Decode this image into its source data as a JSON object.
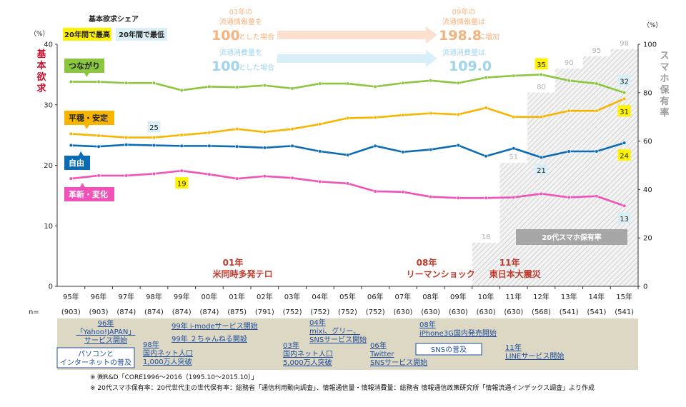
{
  "colors": {
    "tsunagari": "#8cc63f",
    "heion": "#f7b500",
    "jiyu": "#0b6cb5",
    "kakushin": "#f052b8",
    "max_box": "#fff200",
    "min_box": "#daeef5",
    "title_red": "#c8102e",
    "event_red": "#c0392b",
    "smartphone_gray": "#a6a6a6",
    "orange_text": "#f5b27e",
    "blue_text": "#9fd4ec",
    "timeline_bg": "#ddd8c4",
    "link_blue": "#1f4e9e"
  },
  "header": {
    "legend_title": "基本欲求シェア",
    "legend_max": "20年間で最高",
    "legend_min": "20年間で最低",
    "left_unit": "（%）",
    "right_unit": "（%）",
    "left_axis_title": "基本欲求",
    "right_axis_title": "スマホ保有率",
    "info_row1_left": "01年の",
    "info_row1_left_b": "流通情報量を",
    "info_row1_val": "100",
    "info_row1_suffix": "とした場合",
    "info_row1_right": "09年の",
    "info_row1_right_b": "流通情報量は",
    "info_row1_right_val": "198.8",
    "info_row1_right_suffix": "に増加",
    "info_row2_left_b": "流通消費量を",
    "info_row2_val": "100",
    "info_row2_suffix": "とした場合",
    "info_row2_right_b": "流通消費量は",
    "info_row2_right_val": "109.0"
  },
  "chart_data": {
    "type": "line",
    "categories": [
      "95年",
      "96年",
      "97年",
      "98年",
      "99年",
      "00年",
      "01年",
      "02年",
      "03年",
      "04年",
      "05年",
      "06年",
      "07年",
      "08年",
      "09年",
      "10年",
      "11年",
      "12年",
      "13年",
      "14年",
      "15年"
    ],
    "n_labels": [
      "(903)",
      "(903)",
      "(874)",
      "(874)",
      "(874)",
      "(874)",
      "(875)",
      "(791)",
      "(752)",
      "(752)",
      "(752)",
      "(752)",
      "(630)",
      "(630)",
      "(630)",
      "(630)",
      "(630)",
      "(568)",
      "(541)",
      "(541)",
      "(541)"
    ],
    "n_prefix": "n=",
    "y_left": {
      "min": 0,
      "max": 40,
      "ticks": [
        "0",
        "10",
        "20",
        "30",
        "40"
      ]
    },
    "y_right": {
      "min": 0,
      "max": 100,
      "ticks": [
        "0",
        "20",
        "40",
        "60",
        "80",
        "100"
      ]
    },
    "series": [
      {
        "name": "つながり",
        "key": "tsunagari",
        "values": [
          33.8,
          33.8,
          33.6,
          33.6,
          32.4,
          33.0,
          32.9,
          33.2,
          32.7,
          33.5,
          33.5,
          33.0,
          33.6,
          34.0,
          33.6,
          34.5,
          34.8,
          35.0,
          34.0,
          33.5,
          32.0
        ]
      },
      {
        "name": "平穏・安定",
        "key": "heion",
        "values": [
          25.2,
          24.9,
          24.6,
          24.6,
          25.0,
          25.4,
          26.0,
          25.5,
          26.0,
          26.8,
          27.8,
          27.9,
          28.3,
          28.6,
          28.4,
          29.5,
          28.0,
          28.0,
          29.0,
          29.0,
          31.0
        ]
      },
      {
        "name": "自由",
        "key": "jiyu",
        "values": [
          23.3,
          23.1,
          23.4,
          23.3,
          23.2,
          23.2,
          23.1,
          22.9,
          23.2,
          22.3,
          21.7,
          23.2,
          22.2,
          22.6,
          23.3,
          21.5,
          22.8,
          21.3,
          22.3,
          22.3,
          23.7
        ]
      },
      {
        "name": "革新・変化",
        "key": "kakushin",
        "values": [
          17.8,
          18.3,
          18.3,
          18.6,
          19.1,
          18.5,
          17.8,
          18.2,
          17.9,
          17.3,
          17.0,
          15.7,
          15.6,
          14.8,
          14.6,
          14.6,
          14.7,
          15.3,
          14.7,
          14.9,
          13.3
        ]
      }
    ],
    "data_labels": [
      {
        "series": "tsunagari",
        "index": 17,
        "text": "35",
        "style": "max"
      },
      {
        "series": "tsunagari",
        "index": 20,
        "text": "32",
        "style": "min"
      },
      {
        "series": "heion",
        "index": 3,
        "text": "25",
        "style": "min"
      },
      {
        "series": "heion",
        "index": 20,
        "text": "31",
        "style": "max"
      },
      {
        "series": "jiyu",
        "index": 17,
        "text": "21",
        "style": "min"
      },
      {
        "series": "jiyu",
        "index": 20,
        "text": "24",
        "style": "max"
      },
      {
        "series": "kakushin",
        "index": 4,
        "text": "19",
        "style": "max"
      },
      {
        "series": "kakushin",
        "index": 20,
        "text": "13",
        "style": "min"
      }
    ],
    "smartphone_share": {
      "label": "20代スマホ保有率",
      "start_index": 15,
      "values": [
        18,
        51,
        80,
        90,
        95,
        98
      ],
      "labels": [
        "18",
        "51",
        "80",
        "90",
        "95",
        "98"
      ]
    },
    "events": [
      {
        "index": 6,
        "line1": "01年",
        "line2": "米同時多発テロ"
      },
      {
        "index": 13,
        "line1": "08年",
        "line2": "リーマンショック"
      },
      {
        "index": 16,
        "line1": "11年",
        "line2": "東日本大震災"
      }
    ]
  },
  "timeline": {
    "items": [
      {
        "lines": [
          "96年",
          "「Yahoo!JAPAN」",
          "サービス開始"
        ]
      },
      {
        "lines": [
          "98年",
          "国内ネット人口",
          "1,000万人突破"
        ]
      },
      {
        "lines": [
          "99年 i-modeサービス開始"
        ]
      },
      {
        "lines": [
          "99年 ２ちゃんねる開設"
        ]
      },
      {
        "lines": [
          "03年",
          "国内ネット人口",
          "5,000万人突破"
        ]
      },
      {
        "lines": [
          "04年",
          "mixi、グリー、",
          "SNSサービス開始"
        ]
      },
      {
        "lines": [
          "06年",
          "Twitter",
          "SNSサービス開始"
        ]
      },
      {
        "lines": [
          "08年",
          "iPhone3G国内発売開始"
        ]
      },
      {
        "lines": [
          "11年",
          "LINEサービス開始"
        ]
      }
    ],
    "boxes": [
      {
        "lines": [
          "パソコンと",
          "インターネットの普及"
        ]
      },
      {
        "lines": [
          "SNSの普及"
        ]
      }
    ]
  },
  "footnotes": {
    "line1": "※ ㈱R&D「CORE1996～2016（1995.10～2015.10）」",
    "line2": "※ 20代スマホ保有率：20代世代主の世代保有率：総務省「通信利用動向調査」、情報通信量・情報消費量：総務省 情報通信政策研究所「情報流通インデックス調査」より作成"
  }
}
